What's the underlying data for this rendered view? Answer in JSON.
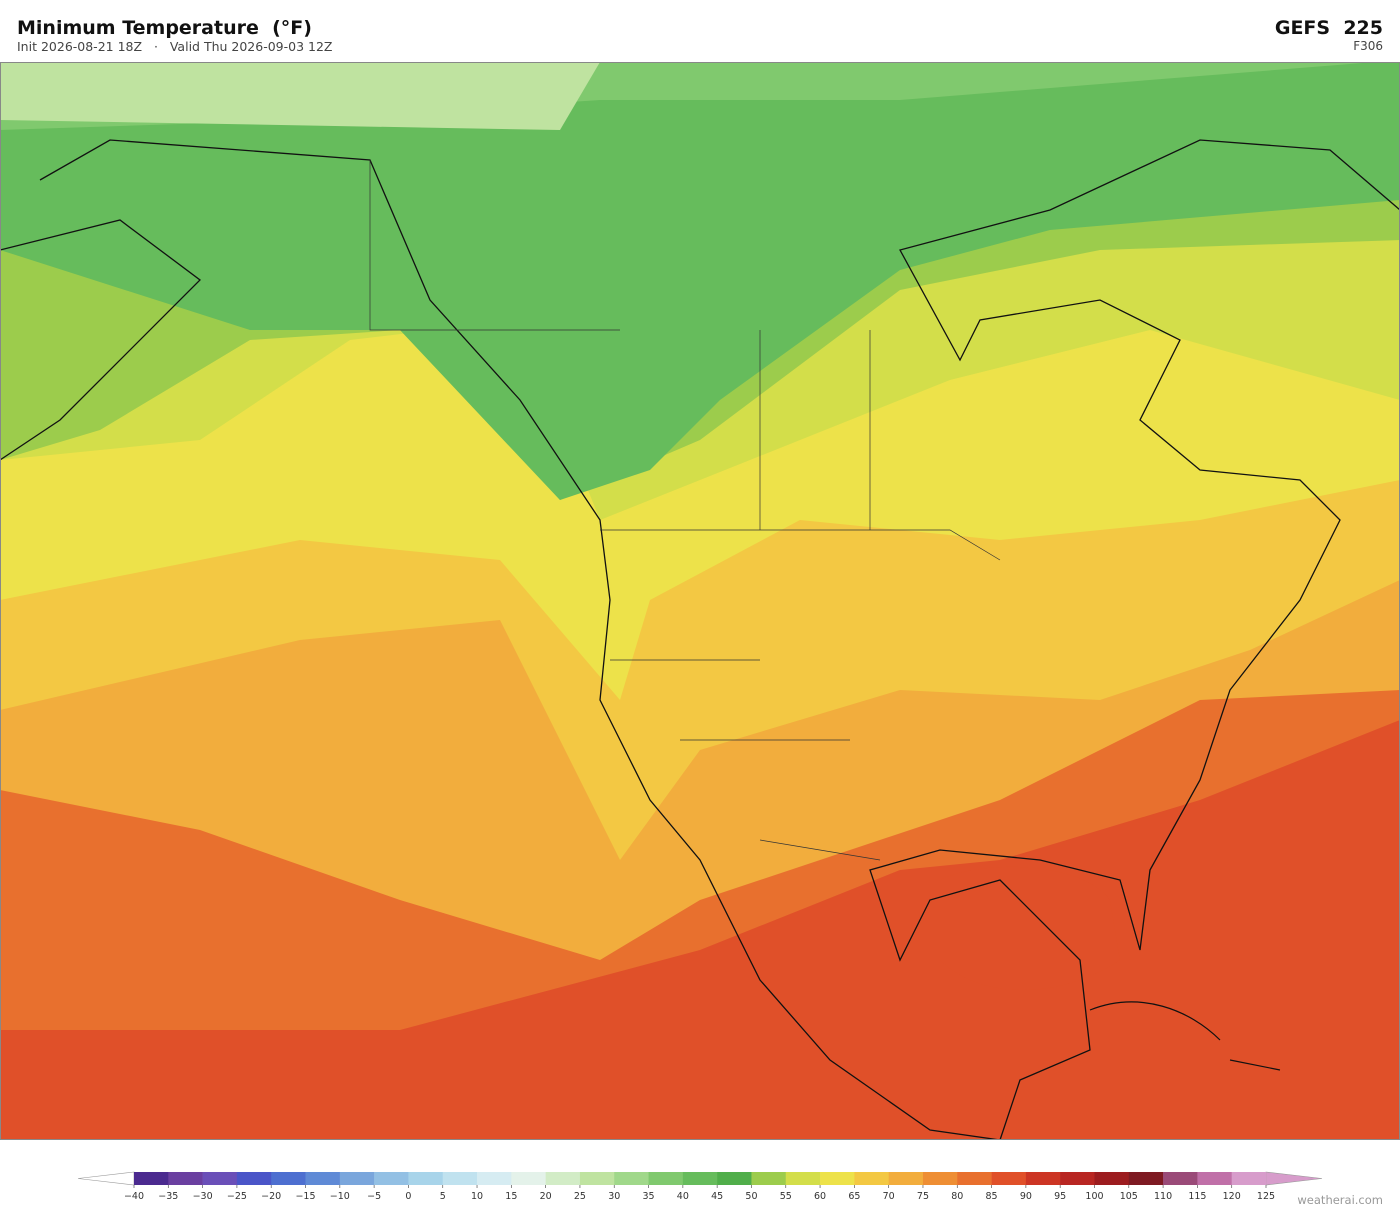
{
  "header": {
    "title": "Minimum Temperature  (°F)",
    "subtitle": "Init 2026-08-21 18Z   ·   Valid Thu 2026-09-03 12Z",
    "model": "GEFS  225",
    "forecast_hour": "F306"
  },
  "colorbar": {
    "ticks": [
      {
        "value": -40,
        "label": "−40"
      },
      {
        "value": -35,
        "label": "−35"
      },
      {
        "value": -30,
        "label": "−30"
      },
      {
        "value": -25,
        "label": "−25"
      },
      {
        "value": -20,
        "label": "−20"
      },
      {
        "value": -15,
        "label": "−15"
      },
      {
        "value": -10,
        "label": "−10"
      },
      {
        "value": -5,
        "label": "−5"
      },
      0,
      5,
      10,
      15,
      20,
      25,
      30,
      35,
      40,
      45,
      50,
      55,
      60,
      65,
      70,
      75,
      80,
      85,
      90,
      95,
      100,
      105,
      110,
      115,
      120,
      125
    ],
    "colors": [
      "#4b2a8f",
      "#6a3fa0",
      "#6a4fb8",
      "#4a55c8",
      "#4d6fd0",
      "#5f8ad6",
      "#7aa6dc",
      "#93c0e4",
      "#a8d4ea",
      "#c0e2ef",
      "#d6ecf2",
      "#e4f2ea",
      "#d2ecc6",
      "#bfe3a0",
      "#a0d88a",
      "#80c96e",
      "#66bc5c",
      "#50ae4a",
      "#9ccc4c",
      "#d3de4a",
      "#ede24a",
      "#f3c843",
      "#f2ad3d",
      "#ee8e34",
      "#e8702e",
      "#e05029",
      "#cc3524",
      "#b82622",
      "#9c1c1f",
      "#7e1a22",
      "#9a4a78",
      "#c070a8",
      "#d79ccb"
    ]
  },
  "watermark": "weatherai.com"
}
